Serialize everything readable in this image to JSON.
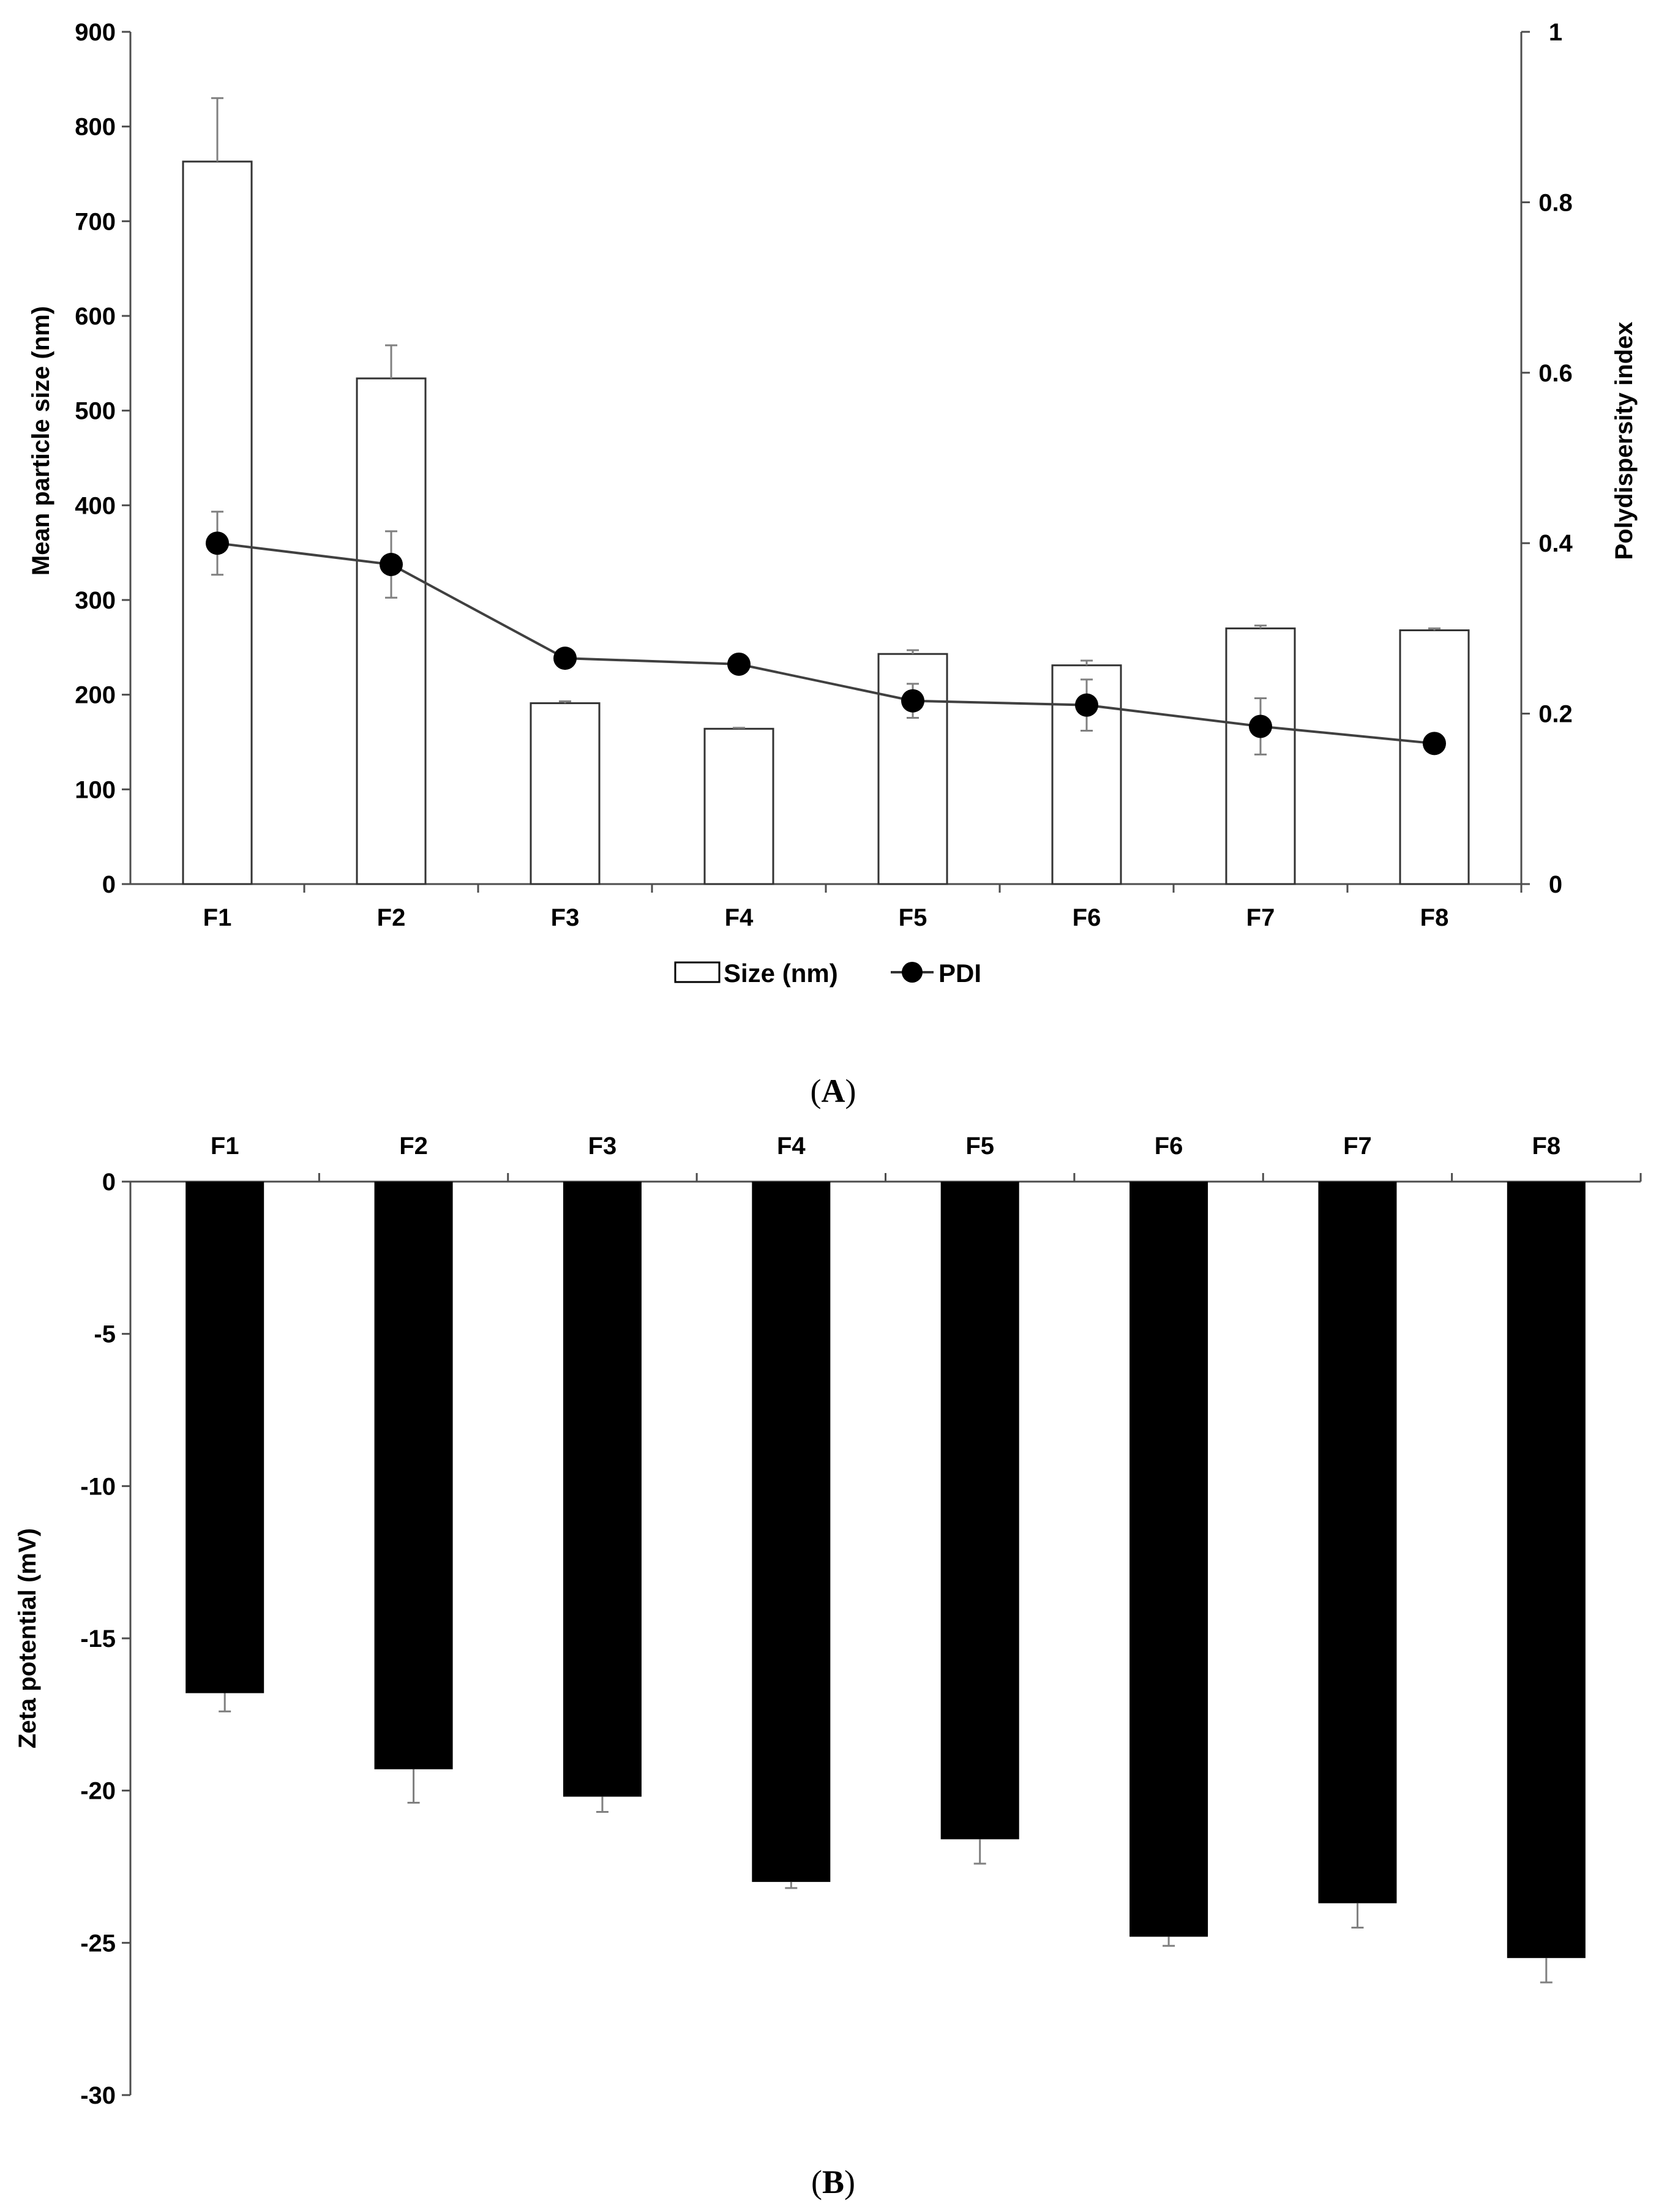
{
  "chart_data": [
    {
      "panel": "A",
      "panel_label_open": "(",
      "panel_label_letter": "A",
      "panel_label_close": ")",
      "type": "bar",
      "categories": [
        "F1",
        "F2",
        "F3",
        "F4",
        "F5",
        "F6",
        "F7",
        "F8"
      ],
      "ylabel": "Mean particle size (nm)",
      "y2label": "Polydispersity index",
      "ylim": [
        0,
        900
      ],
      "yticks": [
        0,
        100,
        200,
        300,
        400,
        500,
        600,
        700,
        800,
        900
      ],
      "y2lim": [
        0,
        1
      ],
      "y2ticks": [
        "0",
        "0.2",
        "0.4",
        "0.6",
        "0.8",
        "1"
      ],
      "series": [
        {
          "name": "Size (nm)",
          "type": "bar",
          "axis": "left",
          "fill": "#ffffff",
          "values": [
            763,
            534,
            191,
            164,
            243,
            231,
            270,
            268
          ],
          "errors": [
            67,
            35,
            2,
            1,
            4,
            5,
            3,
            2
          ]
        },
        {
          "name": "PDI",
          "type": "line",
          "axis": "right",
          "color": "#000000",
          "values": [
            0.4,
            0.375,
            0.265,
            0.258,
            0.215,
            0.21,
            0.185,
            0.165
          ],
          "errors": [
            0.037,
            0.039,
            0.006,
            0.005,
            0.02,
            0.03,
            0.033,
            0.004
          ]
        }
      ],
      "legend": {
        "placement": "bottom-center"
      }
    },
    {
      "panel": "B",
      "panel_label_open": "(",
      "panel_label_letter": "B",
      "panel_label_close": ")",
      "type": "bar",
      "categories": [
        "F1",
        "F2",
        "F3",
        "F4",
        "F5",
        "F6",
        "F7",
        "F8"
      ],
      "ylabel": "Zeta potential (mV)",
      "ylim": [
        -30,
        0
      ],
      "yticks": [
        "0",
        "-5",
        "-10",
        "-15",
        "-20",
        "-25",
        "-30"
      ],
      "series": [
        {
          "name": "Zeta potential",
          "fill": "#000000",
          "values": [
            -16.8,
            -19.3,
            -20.2,
            -23.0,
            -21.6,
            -24.8,
            -23.7,
            -25.5
          ],
          "errors": [
            0.6,
            1.1,
            0.5,
            0.2,
            0.8,
            0.3,
            0.8,
            0.8
          ]
        }
      ]
    }
  ]
}
